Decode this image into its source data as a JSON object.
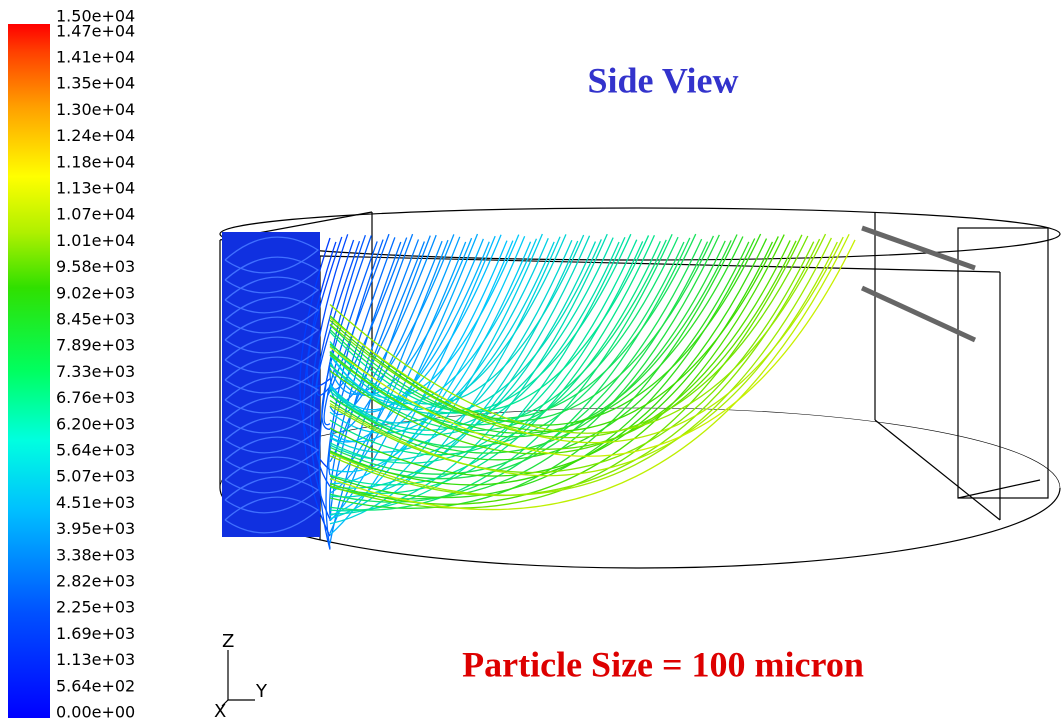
{
  "title": "Side View",
  "caption": "Particle Size = 100 micron",
  "colorbar": {
    "labels": [
      "1.50e+04",
      "1.47e+04",
      "1.41e+04",
      "1.35e+04",
      "1.30e+04",
      "1.24e+04",
      "1.18e+04",
      "1.13e+04",
      "1.07e+04",
      "1.01e+04",
      "9.58e+03",
      "9.02e+03",
      "8.45e+03",
      "7.89e+03",
      "7.33e+03",
      "6.76e+03",
      "6.20e+03",
      "5.64e+03",
      "5.07e+03",
      "4.51e+03",
      "3.95e+03",
      "3.38e+03",
      "2.82e+03",
      "2.25e+03",
      "1.69e+03",
      "1.13e+03",
      "5.64e+02",
      "0.00e+00"
    ]
  },
  "axes_triad": {
    "z": "Z",
    "x": "X",
    "y": "Y"
  }
}
